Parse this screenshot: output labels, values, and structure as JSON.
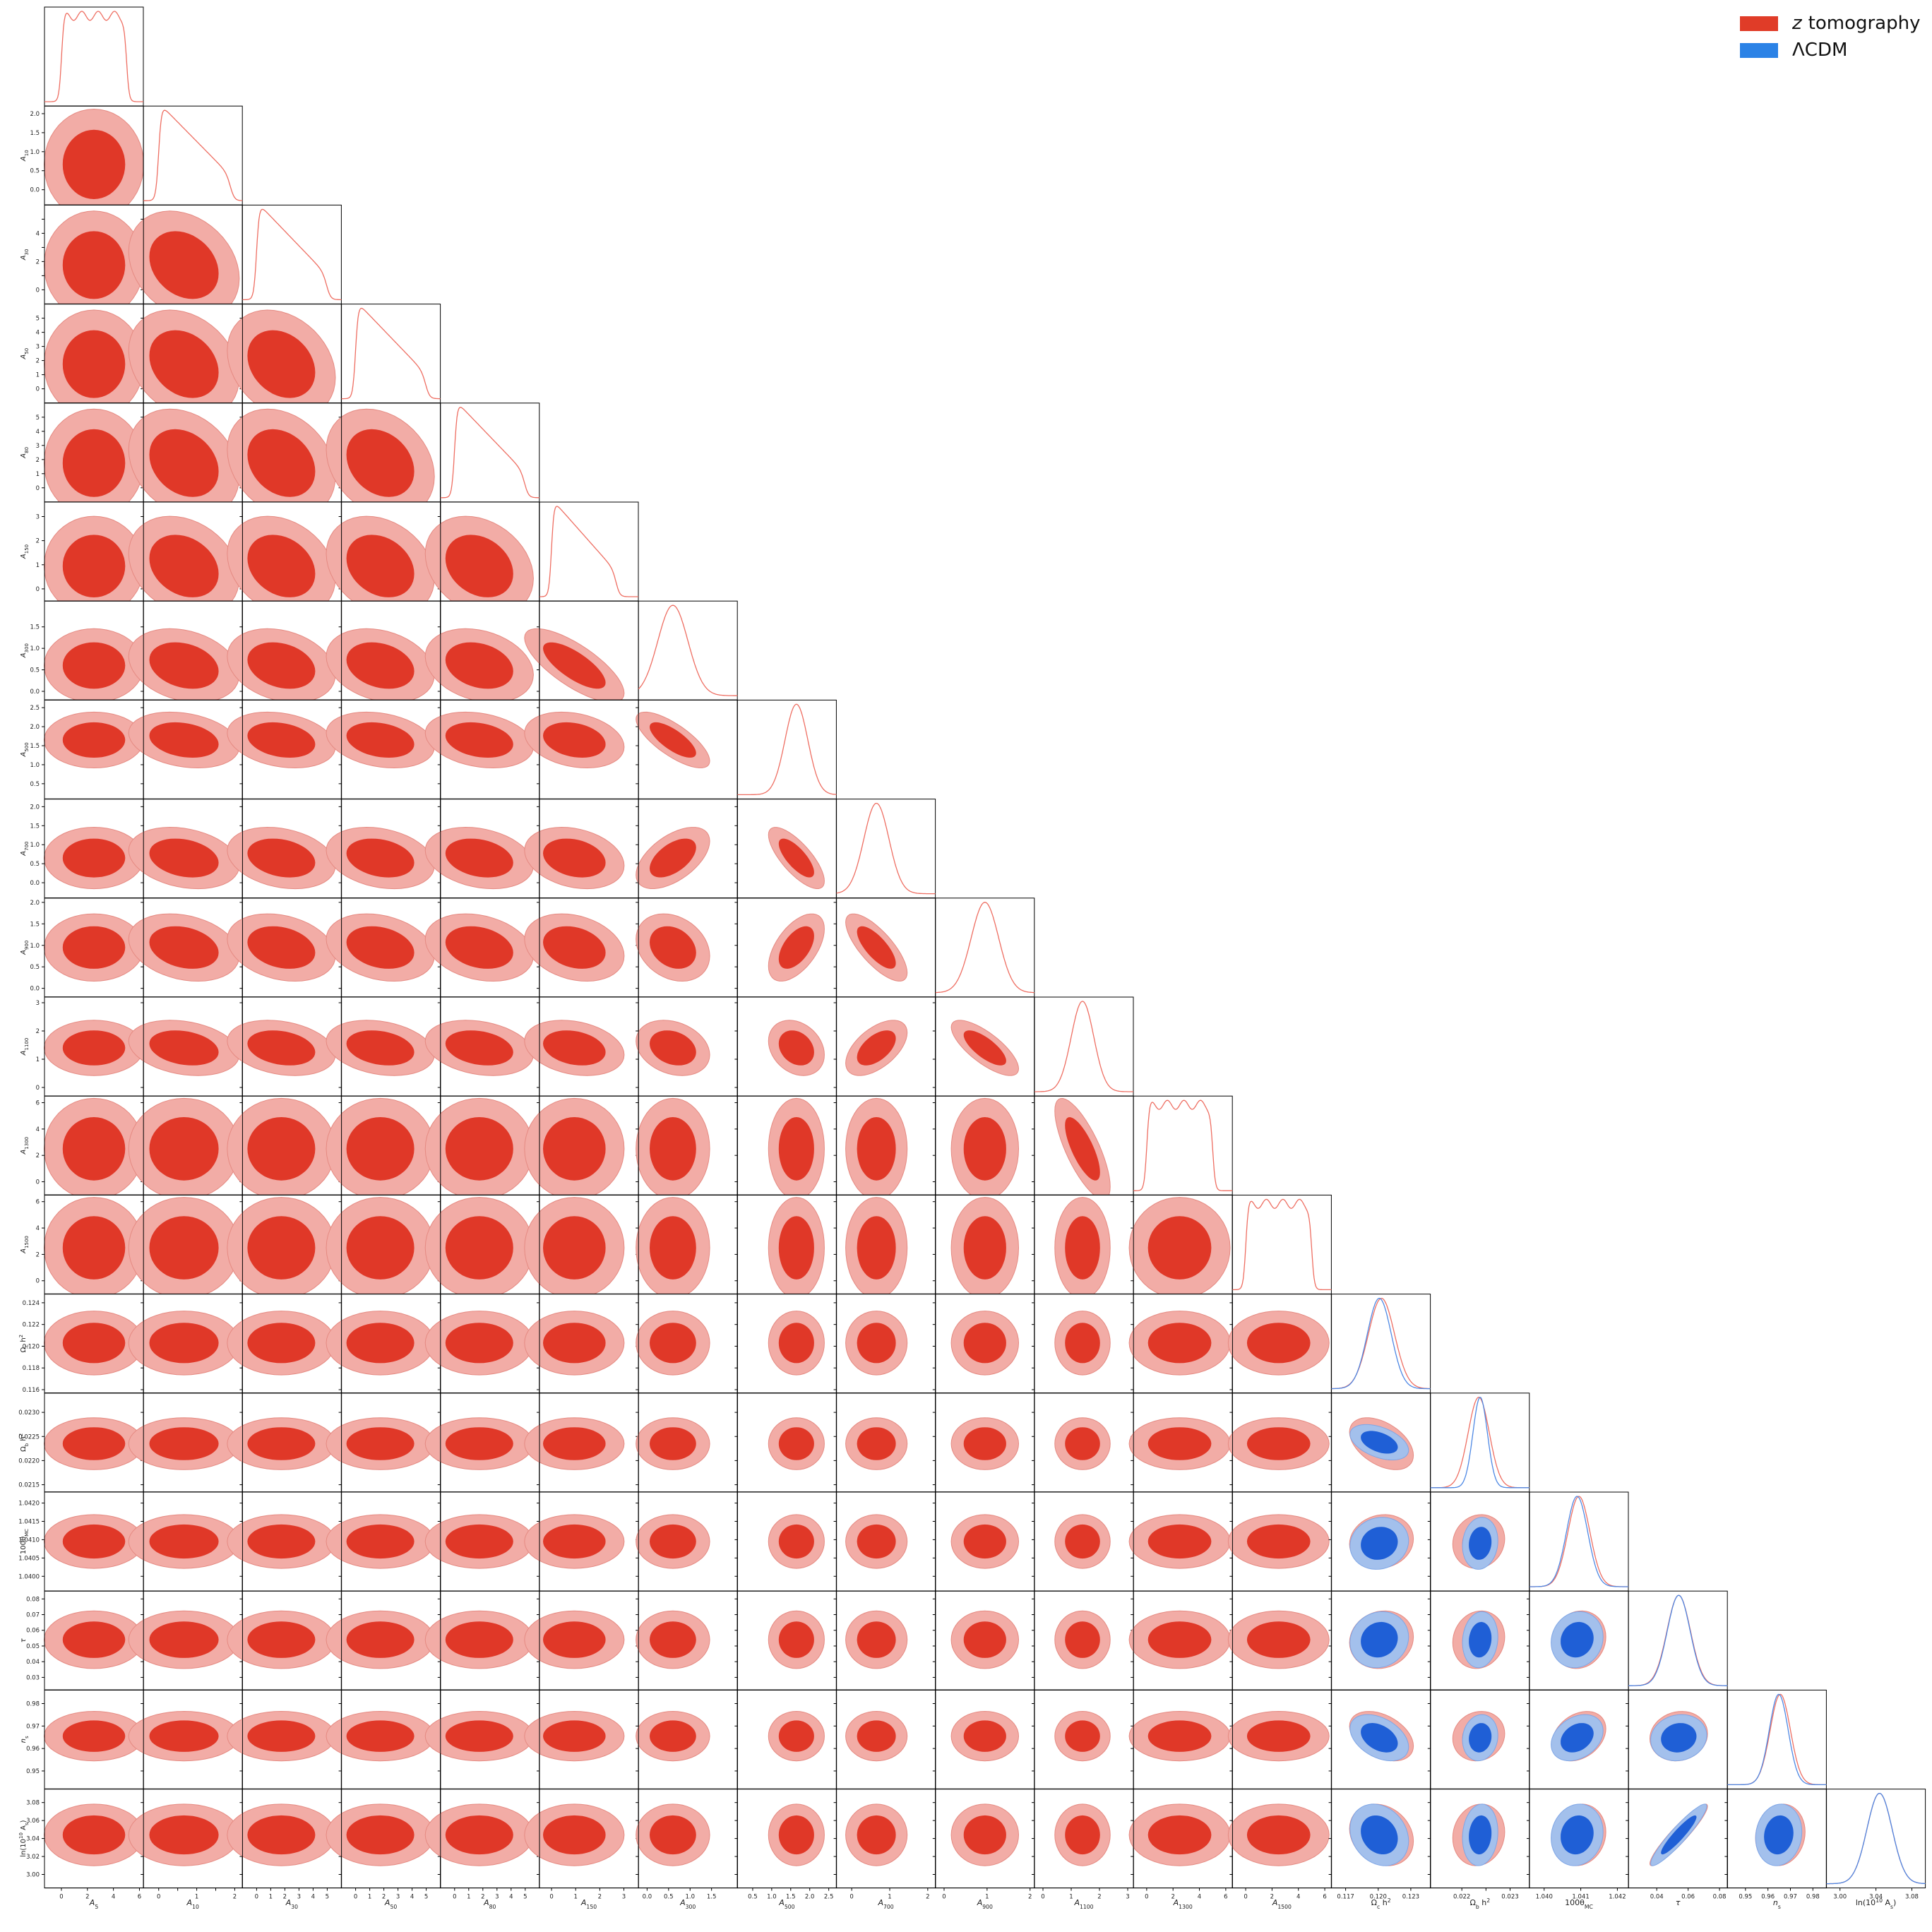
{
  "legend": {
    "items": [
      {
        "var": "z",
        "text": "tomography",
        "color": "#e03c28"
      },
      {
        "var": "",
        "text": "ΛCDM",
        "color": "#2b82e6"
      }
    ]
  },
  "colors": {
    "z_dark": "#e03828",
    "z_light": "#f2aca6",
    "z_line": "#ee6e62",
    "l_dark": "#1f5fd6",
    "l_light": "#a3c0ec",
    "l_line": "#4e88e4"
  },
  "chart_data": {
    "type": "corner",
    "series": [
      {
        "name": "z tomography",
        "color": "#e03c28"
      },
      {
        "name": "ΛCDM",
        "color": "#2b82e6"
      }
    ],
    "parameters": [
      {
        "label": "A_5",
        "range": [
          -1.3,
          6.3
        ],
        "ticks": [
          0,
          2,
          4,
          6
        ],
        "tick_labels": [
          "0",
          "2",
          "4",
          "6"
        ],
        "type": "flat",
        "lo": 0,
        "hi": 5
      },
      {
        "label": "A_10",
        "range": [
          -0.4,
          2.2
        ],
        "ticks": [
          0.0,
          0.5,
          1.0,
          1.5,
          2.0
        ],
        "tick_labels": [
          "0",
          "",
          "1",
          "",
          "2"
        ],
        "y_tick_labels": [
          "0.0",
          "0.5",
          "1.0",
          "1.5",
          "2.0"
        ],
        "type": "decay",
        "lo": 0,
        "hi": 1.9
      },
      {
        "label": "A_30",
        "range": [
          -1.0,
          6.0
        ],
        "ticks": [
          0,
          1,
          2,
          3,
          4,
          5
        ],
        "tick_labels": [
          "0",
          "1",
          "2",
          "3",
          "4",
          "5"
        ],
        "y_tick_labels": [
          "0",
          "",
          "2",
          "",
          "4",
          ""
        ],
        "type": "decay",
        "lo": 0,
        "hi": 5.0
      },
      {
        "label": "A_50",
        "range": [
          -1.0,
          6.0
        ],
        "ticks": [
          0,
          1,
          2,
          3,
          4,
          5
        ],
        "tick_labels": [
          "0",
          "1",
          "2",
          "3",
          "4",
          "5"
        ],
        "type": "decay",
        "lo": 0,
        "hi": 5.0
      },
      {
        "label": "A_80",
        "range": [
          -1.0,
          6.0
        ],
        "ticks": [
          0,
          1,
          2,
          3,
          4,
          5
        ],
        "tick_labels": [
          "0",
          "1",
          "2",
          "3",
          "4",
          "5"
        ],
        "type": "decay",
        "lo": 0,
        "hi": 5.0
      },
      {
        "label": "A_150",
        "range": [
          -0.5,
          3.6
        ],
        "ticks": [
          0,
          1,
          2,
          3
        ],
        "tick_labels": [
          "0",
          "1",
          "2",
          "3"
        ],
        "type": "decay",
        "lo": 0,
        "hi": 2.7
      },
      {
        "label": "A_300",
        "range": [
          -0.2,
          2.1
        ],
        "ticks": [
          0.0,
          0.5,
          1.0,
          1.5
        ],
        "tick_labels": [
          "0.0",
          "0.5",
          "1.0",
          "1.5"
        ],
        "type": "gauss",
        "mean": 0.6,
        "sd": 0.35
      },
      {
        "label": "A_500",
        "range": [
          0.1,
          2.7
        ],
        "ticks": [
          0.5,
          1.0,
          1.5,
          2.0,
          2.5
        ],
        "tick_labels": [
          "0.5",
          "1.0",
          "1.5",
          "2.0",
          "2.5"
        ],
        "type": "gauss",
        "mean": 1.65,
        "sd": 0.3
      },
      {
        "label": "A_700",
        "range": [
          -0.4,
          2.2
        ],
        "ticks": [
          0,
          1,
          2
        ],
        "tick_labels": [
          "0",
          "1",
          "2"
        ],
        "y_tick_labels": [
          "0.0",
          "0.5",
          "1.0",
          "1.5",
          "2.0"
        ],
        "y_ticks": [
          0.0,
          0.5,
          1.0,
          1.5,
          2.0
        ],
        "type": "gauss",
        "mean": 0.65,
        "sd": 0.33
      },
      {
        "label": "A_900",
        "range": [
          -0.2,
          2.1
        ],
        "ticks": [
          0,
          1,
          2
        ],
        "tick_labels": [
          "0",
          "1",
          "2"
        ],
        "y_tick_labels": [
          "0.0",
          "0.5",
          "1.0",
          "1.5",
          "2.0"
        ],
        "y_ticks": [
          0.0,
          0.5,
          1.0,
          1.5,
          2.0
        ],
        "type": "gauss",
        "mean": 0.95,
        "sd": 0.32
      },
      {
        "label": "A_1100",
        "range": [
          -0.3,
          3.2
        ],
        "ticks": [
          0,
          1,
          2,
          3
        ],
        "tick_labels": [
          "0",
          "1",
          "2",
          "3"
        ],
        "type": "gauss",
        "mean": 1.4,
        "sd": 0.4
      },
      {
        "label": "A_1300",
        "range": [
          -1.0,
          6.5
        ],
        "ticks": [
          0,
          2,
          4,
          6
        ],
        "tick_labels": [
          "0",
          "2",
          "4",
          "6"
        ],
        "type": "flat",
        "lo": 0,
        "hi": 5
      },
      {
        "label": "A_1500",
        "range": [
          -1.0,
          6.5
        ],
        "ticks": [
          0,
          2,
          4,
          6
        ],
        "tick_labels": [
          "0",
          "2",
          "4",
          "6"
        ],
        "type": "flat",
        "lo": 0,
        "hi": 5
      },
      {
        "label": "Ω_c h^2",
        "range": [
          0.1157,
          0.1248
        ],
        "ticks": [
          0.117,
          0.12,
          0.123
        ],
        "tick_labels": [
          "0.117",
          "0.120",
          "0.123"
        ],
        "y_ticks": [
          0.116,
          0.118,
          0.12,
          0.122,
          0.124
        ],
        "y_tick_labels": [
          "0.116",
          "0.118",
          "0.120",
          "0.122",
          "0.124"
        ],
        "type": "gauss",
        "mean": 0.1203,
        "sd": 0.0012,
        "lcdm_mean": 0.1201,
        "lcdm_sd": 0.0011
      },
      {
        "label": "Ω_b h^2",
        "range": [
          0.02135,
          0.0234
        ],
        "ticks": [
          0.022,
          0.0225,
          0.023
        ],
        "tick_labels": [
          "0.022",
          "",
          "0.023"
        ],
        "y_ticks": [
          0.0215,
          0.022,
          0.0225,
          0.023
        ],
        "y_tick_labels": [
          "0.0215",
          "0.0220",
          "0.0225",
          "0.0230"
        ],
        "type": "gauss",
        "mean": 0.02235,
        "sd": 0.00022,
        "lcdm_mean": 0.02238,
        "lcdm_sd": 0.00015
      },
      {
        "label": "100θ_MC",
        "range": [
          1.0396,
          1.0423
        ],
        "ticks": [
          1.04,
          1.041,
          1.042
        ],
        "tick_labels": [
          "1.040",
          "1.041",
          "1.042"
        ],
        "y_ticks": [
          1.04,
          1.0405,
          1.041,
          1.0415,
          1.042
        ],
        "y_tick_labels": [
          "1.0400",
          "1.0405",
          "1.0410",
          "1.0415",
          "1.0420"
        ],
        "type": "gauss",
        "mean": 1.04095,
        "sd": 0.0003,
        "lcdm_mean": 1.0409,
        "lcdm_sd": 0.00029
      },
      {
        "label": "τ",
        "range": [
          0.022,
          0.085
        ],
        "ticks": [
          0.04,
          0.06,
          0.08
        ],
        "tick_labels": [
          "0.04",
          "0.06",
          "0.08"
        ],
        "y_ticks": [
          0.03,
          0.04,
          0.05,
          0.06,
          0.07,
          0.08
        ],
        "y_tick_labels": [
          "0.03",
          "0.04",
          "0.05",
          "0.06",
          "0.07",
          "0.08"
        ],
        "type": "gauss",
        "mean": 0.054,
        "sd": 0.0075,
        "lcdm_mean": 0.054,
        "lcdm_sd": 0.0073
      },
      {
        "label": "n_s",
        "range": [
          0.942,
          0.986
        ],
        "ticks": [
          0.95,
          0.96,
          0.97,
          0.98
        ],
        "tick_labels": [
          "0.95",
          "0.96",
          "0.97",
          "0.98"
        ],
        "y_ticks": [
          0.95,
          0.96,
          0.97,
          0.98
        ],
        "y_tick_labels": [
          "0.95",
          "0.96",
          "0.97",
          "0.98"
        ],
        "type": "gauss",
        "mean": 0.9655,
        "sd": 0.0045,
        "lcdm_mean": 0.9648,
        "lcdm_sd": 0.0042
      },
      {
        "label": "ln(10^10 A_s)",
        "range": [
          2.985,
          3.095
        ],
        "ticks": [
          3.0,
          3.04,
          3.08
        ],
        "tick_labels": [
          "3.00",
          "3.04",
          "3.08"
        ],
        "y_ticks": [
          3.0,
          3.02,
          3.04,
          3.06,
          3.08
        ],
        "y_tick_labels": [
          "3.00",
          "3.02",
          "3.04",
          "3.06",
          "3.08"
        ],
        "type": "gauss",
        "mean": 3.044,
        "sd": 0.014,
        "lcdm_mean": 3.044,
        "lcdm_sd": 0.014
      }
    ]
  }
}
